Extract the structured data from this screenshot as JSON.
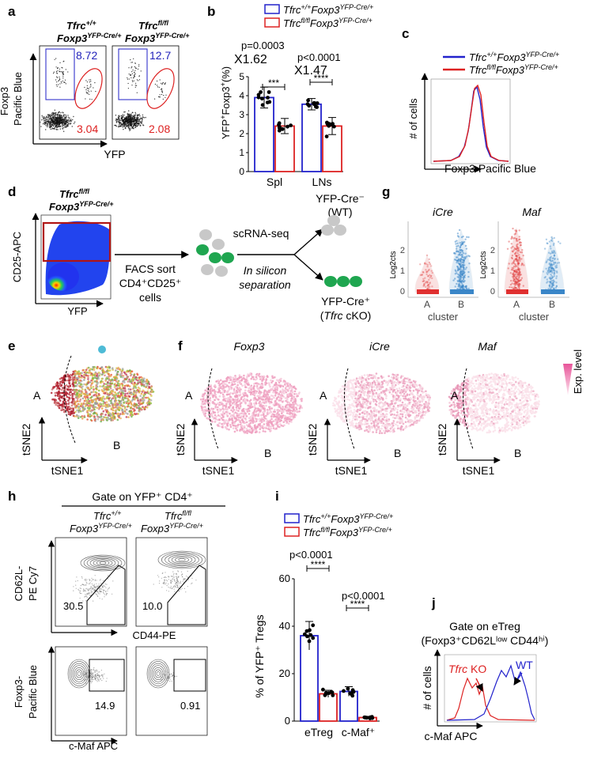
{
  "panel_letters": {
    "a": "a",
    "b": "b",
    "c": "c",
    "d": "d",
    "e": "e",
    "f": "f",
    "g": "g",
    "h": "h",
    "i": "i",
    "j": "j"
  },
  "genotype": {
    "wt_gene": "Tfrc",
    "wt_sup": "+/+",
    "fl_gene": "Tfrc",
    "fl_sup": "fl/fl",
    "foxp3": "Foxp3",
    "foxp3_sup": "YFP-Cre/+"
  },
  "panel_a": {
    "yaxis_line1": "Foxp3",
    "yaxis_line2": "Pacific Blue",
    "xaxis": "YFP",
    "plots": [
      {
        "top_value": "8.72",
        "bottom_value": "3.04"
      },
      {
        "top_value": "12.7",
        "bottom_value": "2.08"
      }
    ],
    "colors": {
      "gate_blue": "#3333cc",
      "gate_red": "#dd2222"
    }
  },
  "panel_b": {
    "legend_wt": "Tfrc+/+Foxp3YFP-Cre/+",
    "legend_fl": "Tfrcfl/flFoxp3YFP-Cre/+",
    "p_spl": "p=0.0003",
    "p_lns": "p<0.0001",
    "fold_spl": "X1.62",
    "fold_lns": "X1.47",
    "sig_spl": "***",
    "sig_lns": "****",
    "ylabel_main": "YFP",
    "ylabel_rest": "Foxp3",
    "ylabel_unit": "(%)"
  },
  "panel_c": {
    "xlabel": "Foxp3 Pacific Blue",
    "ylabel": "# of cells"
  },
  "panel_d": {
    "yaxis": "CD25-APC",
    "xaxis": "YFP",
    "facs_line1": "FACS sort",
    "facs_line2": "CD4⁺CD25⁺",
    "facs_line3": "cells",
    "scrna": "scRNA-seq",
    "insilico_line1": "In silicon",
    "insilico_line2": "separation",
    "out_top_line1": "YFP-Cre⁻",
    "out_top_line2": "(WT)",
    "out_bottom_line1": "YFP-Cre⁺",
    "out_bottom_line2_pre": "(",
    "out_bottom_gene": "Tfrc",
    "out_bottom_line2_post": " cKO)"
  },
  "panel_g": {
    "plots": [
      {
        "title": "iCre",
        "ylabel": "Log2cts"
      },
      {
        "title": "Maf",
        "ylabel": "Log2cts"
      }
    ],
    "xlabel": "cluster",
    "categories": [
      "A",
      "B"
    ],
    "yticks": [
      "0",
      "1",
      "2"
    ]
  },
  "panel_e": {
    "label_a": "A",
    "label_b": "B",
    "ylabel": "tSNE2",
    "xlabel": "tSNE1"
  },
  "panel_f": {
    "titles": [
      "Foxp3",
      "iCre",
      "Maf"
    ],
    "label_a": "A",
    "label_b": "B",
    "ylabel": "tSNE2",
    "xlabel": "tSNE1",
    "legend": "Exp. level"
  },
  "panel_h": {
    "gate_header": "Gate on YFP⁺ CD4⁺",
    "top_ylabel_line1": "CD62L-",
    "top_ylabel_line2": "PE Cy7",
    "top_xlabel": "CD44-PE",
    "bottom_ylabel_line1": "Foxp3-",
    "bottom_ylabel_line2": "Pacific Blue",
    "bottom_xlabel": "c-Maf APC",
    "top_values": [
      "30.5",
      "10.0"
    ],
    "bottom_values": [
      "14.9",
      "0.91"
    ]
  },
  "panel_i": {
    "legend_wt": "Tfrc+/+Foxp3YFP-Cre/+",
    "legend_fl": "Tfrcfl/flFoxp3YFP-Cre/+",
    "p_etreg": "p<0.0001",
    "p_cmaf": "p<0.0001",
    "sig_etreg": "****",
    "sig_cmaf": "****",
    "ylabel": "% of YFP⁺ Tregs",
    "yticks": [
      "0",
      "20",
      "40",
      "60"
    ],
    "categories": [
      "eTreg",
      "c-Maf⁺"
    ]
  },
  "panel_j": {
    "gate_line1": "Gate on eTreg",
    "gate_line2": "(Foxp3⁺CD62Lˡᵒʷ CD44ʰⁱ)",
    "ylabel": "# of cells",
    "xlabel": "c-Maf APC",
    "ko_gene": "Tfrc",
    "ko_label": " KO",
    "wt_label": "WT"
  },
  "chart_data": [
    {
      "type": "bar",
      "categories": [
        "Spl",
        "LNs"
      ],
      "series": [
        {
          "name": "Tfrc+/+Foxp3YFP-Cre/+",
          "values": [
            3.9,
            3.55
          ]
        },
        {
          "name": "Tfrcfl/flFoxp3YFP-Cre/+",
          "values": [
            2.4,
            2.4
          ]
        }
      ],
      "errors": [
        [
          0.55,
          0.3
        ],
        [
          0.4,
          0.45
        ]
      ],
      "ylim": [
        0,
        5
      ],
      "yticks": [
        "0",
        "1",
        "2",
        "3",
        "4",
        "5"
      ],
      "colors": [
        "#2222cc",
        "#dd2222"
      ]
    },
    {
      "type": "bar",
      "categories": [
        "eTreg",
        "c-Maf⁺"
      ],
      "series": [
        {
          "name": "Tfrc+/+Foxp3YFP-Cre/+",
          "values": [
            36,
            12.5
          ]
        },
        {
          "name": "Tfrcfl/flFoxp3YFP-Cre/+",
          "values": [
            11.5,
            1.5
          ]
        }
      ],
      "errors": [
        [
          6,
          2
        ],
        [
          1.5,
          0.5
        ]
      ],
      "ylim": [
        0,
        60
      ],
      "colors": [
        "#2222cc",
        "#dd2222"
      ]
    },
    {
      "type": "line",
      "series": [
        {
          "name": "Tfrc+/+Foxp3YFP-Cre/+",
          "color": "#2222cc"
        },
        {
          "name": "Tfrcfl/flFoxp3YFP-Cre/+",
          "color": "#dd2222"
        }
      ],
      "xlabel": "Foxp3 Pacific Blue",
      "ylabel": "# of cells"
    }
  ]
}
